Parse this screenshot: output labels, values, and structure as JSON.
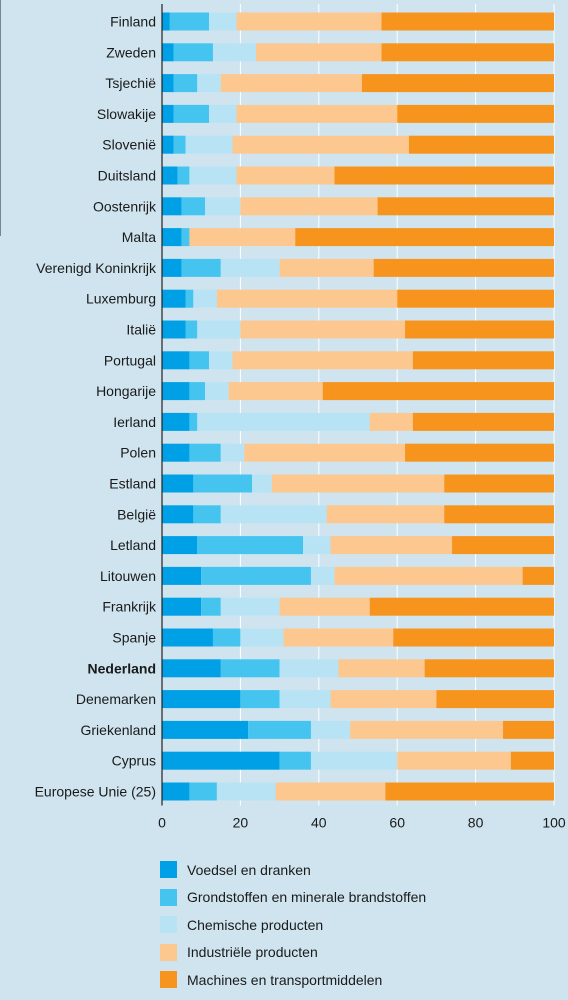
{
  "chart_data": {
    "type": "bar",
    "orientation": "horizontal",
    "stacked": true,
    "title": "",
    "xlabel": "",
    "ylabel": "",
    "xlim": [
      0,
      100
    ],
    "x_ticks": [
      "0",
      "20",
      "40",
      "60",
      "80",
      "100"
    ],
    "grid": true,
    "legend_position": "bottom",
    "highlight_category": "Nederland",
    "categories": [
      "Finland",
      "Zweden",
      "Tsjechië",
      "Slowakije",
      "Slovenië",
      "Duitsland",
      "Oostenrijk",
      "Malta",
      "Verenigd Koninkrijk",
      "Luxemburg",
      "Italië",
      "Portugal",
      "Hongarije",
      "Ierland",
      "Polen",
      "Estland",
      "België",
      "Letland",
      "Litouwen",
      "Frankrijk",
      "Spanje",
      "Nederland",
      "Denemarken",
      "Griekenland",
      "Cyprus",
      "Europese Unie (25)"
    ],
    "series": [
      {
        "name": "Voedsel en dranken",
        "color": "#00a0e6",
        "values": [
          2,
          3,
          3,
          3,
          3,
          4,
          5,
          5,
          5,
          6,
          6,
          7,
          7,
          7,
          7,
          8,
          8,
          9,
          10,
          10,
          13,
          15,
          20,
          22,
          30,
          7
        ]
      },
      {
        "name": "Grondstoffen en minerale brandstoffen",
        "color": "#45c4f0",
        "values": [
          10,
          10,
          6,
          9,
          3,
          3,
          6,
          2,
          10,
          2,
          3,
          5,
          4,
          2,
          8,
          15,
          7,
          27,
          28,
          5,
          7,
          15,
          10,
          16,
          8,
          7
        ]
      },
      {
        "name": "Chemische producten",
        "color": "#b8e3f5",
        "values": [
          7,
          11,
          6,
          7,
          12,
          12,
          9,
          0,
          15,
          6,
          11,
          6,
          6,
          44,
          6,
          5,
          27,
          7,
          6,
          15,
          11,
          15,
          13,
          10,
          22,
          15
        ]
      },
      {
        "name": "Industriële producten",
        "color": "#fcc890",
        "values": [
          37,
          32,
          36,
          41,
          45,
          25,
          35,
          27,
          24,
          46,
          42,
          46,
          24,
          11,
          41,
          44,
          30,
          31,
          48,
          23,
          28,
          22,
          27,
          39,
          29,
          28
        ]
      },
      {
        "name": "Machines en transportmiddelen",
        "color": "#f7941d",
        "values": [
          44,
          44,
          49,
          40,
          37,
          56,
          45,
          66,
          46,
          40,
          38,
          36,
          59,
          36,
          38,
          28,
          28,
          26,
          8,
          47,
          41,
          33,
          30,
          13,
          11,
          43
        ]
      }
    ]
  }
}
